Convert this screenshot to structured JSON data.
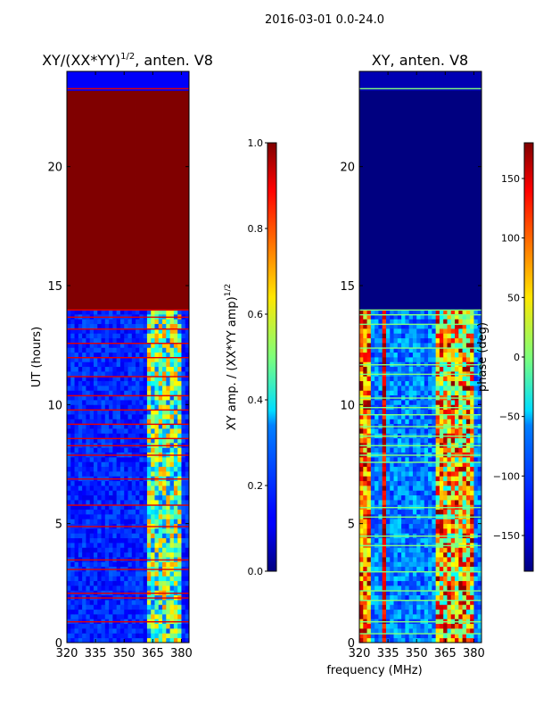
{
  "figure": {
    "suptitle": "2016-03-01 0.0-24.0",
    "xlabel": "frequency (MHz)"
  },
  "colormap": "jet",
  "chart_data": [
    {
      "type": "heatmap",
      "title_main": "XY/(XX*YY)",
      "title_exp": "1/2",
      "title_rest": ", anten. V8",
      "xlabel": "",
      "ylabel": "UT (hours)",
      "x_ticks": [
        320,
        335,
        350,
        365,
        380
      ],
      "y_ticks": [
        0,
        5,
        10,
        15,
        20
      ],
      "xlim": [
        320,
        384
      ],
      "ylim": [
        0,
        24
      ],
      "grid": false,
      "colorbar": {
        "label_main": "XY amp. / (XX*YY amp)",
        "label_exp": "1/2",
        "range": [
          0.0,
          1.0
        ],
        "ticks": [
          "0.0",
          "0.2",
          "0.4",
          "0.6",
          "0.8",
          "1.0"
        ]
      },
      "description_values": {
        "saturated_block_hours": [
          14.0,
          23.3
        ],
        "saturated_value": 1.0,
        "background_value": 0.1,
        "rfi_band_mhz": [
          361,
          380
        ]
      }
    },
    {
      "type": "heatmap",
      "title": "XY, anten. V8",
      "xlabel": "",
      "ylabel": "",
      "x_ticks": [
        320,
        335,
        350,
        365,
        380
      ],
      "y_ticks": [
        0,
        5,
        10,
        15,
        20
      ],
      "xlim": [
        320,
        384
      ],
      "ylim": [
        0,
        24
      ],
      "grid": false,
      "colorbar": {
        "label": "phase (deg)",
        "range": [
          -180,
          180
        ],
        "ticks": [
          "−150",
          "−100",
          "−50",
          "0",
          "50",
          "100",
          "150"
        ],
        "tick_values": [
          -150,
          -100,
          -50,
          0,
          50,
          100,
          150
        ]
      },
      "description_values": {
        "flat_block_hours": [
          14.0,
          23.3
        ],
        "flat_value": -180,
        "rfi_band_mhz": [
          361,
          380
        ]
      }
    }
  ]
}
